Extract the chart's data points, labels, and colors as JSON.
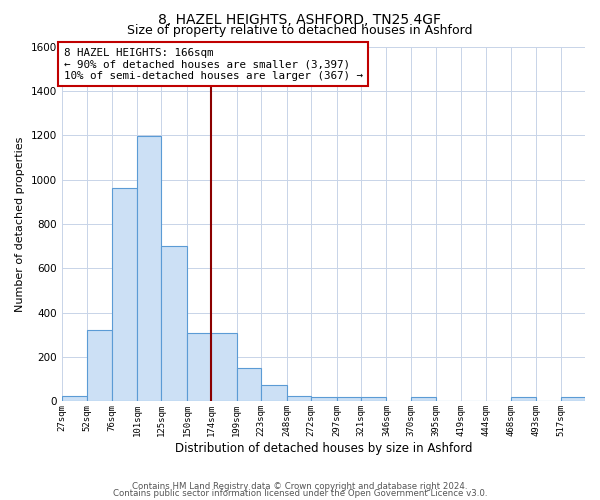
{
  "title": "8, HAZEL HEIGHTS, ASHFORD, TN25 4GF",
  "subtitle": "Size of property relative to detached houses in Ashford",
  "xlabel": "Distribution of detached houses by size in Ashford",
  "ylabel": "Number of detached properties",
  "bar_color": "#cce0f5",
  "bar_edge_color": "#5b9bd5",
  "background_color": "#ffffff",
  "grid_color": "#c8d4e8",
  "ylim": [
    0,
    1600
  ],
  "yticks": [
    0,
    200,
    400,
    600,
    800,
    1000,
    1200,
    1400,
    1600
  ],
  "bins": [
    27,
    52,
    76,
    101,
    125,
    150,
    174,
    199,
    223,
    248,
    272,
    297,
    321,
    346,
    370,
    395,
    419,
    444,
    468,
    493,
    517,
    541
  ],
  "bin_labels": [
    "27sqm",
    "52sqm",
    "76sqm",
    "101sqm",
    "125sqm",
    "150sqm",
    "174sqm",
    "199sqm",
    "223sqm",
    "248sqm",
    "272sqm",
    "297sqm",
    "321sqm",
    "346sqm",
    "370sqm",
    "395sqm",
    "419sqm",
    "444sqm",
    "468sqm",
    "493sqm",
    "517sqm"
  ],
  "heights": [
    25,
    320,
    960,
    1195,
    700,
    310,
    310,
    150,
    75,
    25,
    20,
    20,
    20,
    0,
    20,
    0,
    0,
    0,
    20,
    0,
    20
  ],
  "vline_x": 174,
  "vline_color": "#8b0000",
  "ann_line1": "8 HAZEL HEIGHTS: 166sqm",
  "ann_line2": "← 90% of detached houses are smaller (3,397)",
  "ann_line3": "10% of semi-detached houses are larger (367) →",
  "footer_line1": "Contains HM Land Registry data © Crown copyright and database right 2024.",
  "footer_line2": "Contains public sector information licensed under the Open Government Licence v3.0.",
  "title_fontsize": 10,
  "subtitle_fontsize": 9,
  "annotation_fontsize": 7.8,
  "ylabel_fontsize": 8,
  "xlabel_fontsize": 8.5
}
